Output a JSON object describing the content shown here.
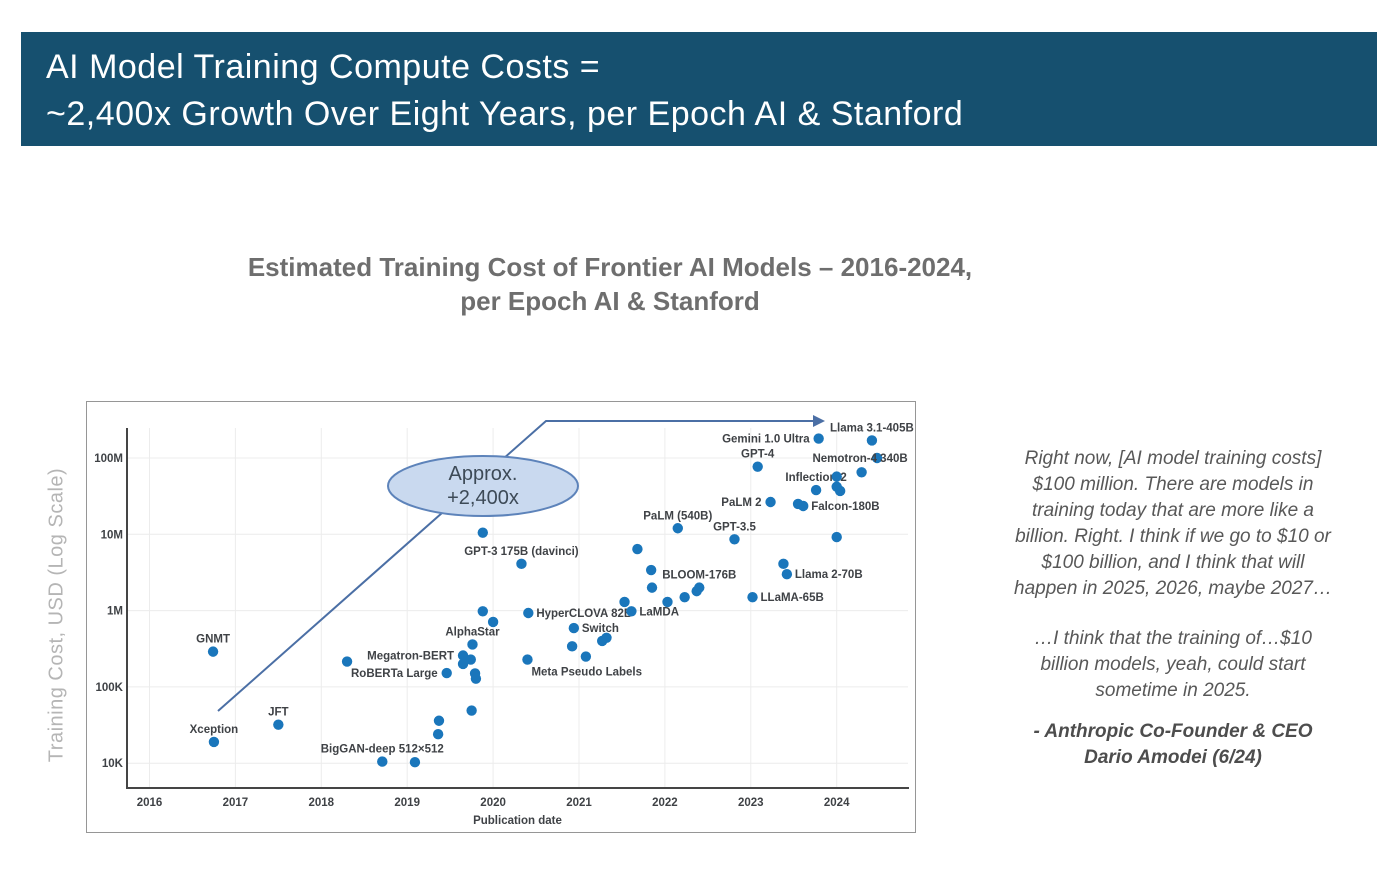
{
  "header": {
    "line1": "AI Model Training Compute Costs =",
    "line2": "~2,400x Growth Over Eight Years, per Epoch AI & Stanford",
    "bg_color": "#16506f",
    "text_color": "#ffffff"
  },
  "quote": {
    "p1_lines": [
      "Right now, [AI model training costs]",
      "$100 million. There are models in",
      "training today that are more like a",
      "billion. Right. I think if we go to $10 or",
      "$100 billion, and I think that will",
      "happen in 2025, 2026, maybe 2027…"
    ],
    "p2_lines": [
      "…I think that the training of…$10",
      "billion models, yeah, could start",
      "sometime in 2025."
    ],
    "attribution_lines": [
      "- Anthropic Co-Founder & CEO",
      "Dario Amodei (6/24)"
    ]
  },
  "chart_data": {
    "type": "scatter",
    "title_line1": "Estimated Training Cost of Frontier AI Models – 2016-2024,",
    "title_line2": "per Epoch AI & Stanford",
    "xlabel": "Publication date",
    "ylabel": "Training Cost, USD (Log Scale)",
    "x_ticks": [
      2016,
      2017,
      2018,
      2019,
      2020,
      2021,
      2022,
      2023,
      2024
    ],
    "y_ticks": [
      {
        "label": "100M",
        "value": 100000000
      },
      {
        "label": "10M",
        "value": 10000000
      },
      {
        "label": "1M",
        "value": 1000000
      },
      {
        "label": "100K",
        "value": 100000
      },
      {
        "label": "10K",
        "value": 10000
      }
    ],
    "x_range": [
      2015.74,
      2024.82
    ],
    "y_range": [
      4300,
      400000000
    ],
    "grid": true,
    "annotation": {
      "line1": "Approx.",
      "line2": "+2,400x"
    },
    "colors": {
      "dot": "#1a76bb",
      "arrow": "#4b6fa5",
      "ellipse_fill": "#c9d9ef",
      "ellipse_stroke": "#5d83ba",
      "grid": "#ececec",
      "spine": "#454545"
    },
    "points": [
      {
        "name": "Xception",
        "year": 2016.75,
        "cost": 19000,
        "side": "above"
      },
      {
        "name": "GNMT",
        "year": 2016.74,
        "cost": 290000,
        "side": "above"
      },
      {
        "name": "JFT",
        "year": 2017.5,
        "cost": 32000,
        "side": "above"
      },
      {
        "name": null,
        "year": 2018.3,
        "cost": 215000
      },
      {
        "name": "BigGAN-deep 512×512",
        "year": 2018.71,
        "cost": 10500,
        "side": "above"
      },
      {
        "name": null,
        "year": 2019.09,
        "cost": 10300
      },
      {
        "name": null,
        "year": 2019.36,
        "cost": 24000
      },
      {
        "name": null,
        "year": 2019.37,
        "cost": 36000
      },
      {
        "name": "RoBERTa Large",
        "year": 2019.46,
        "cost": 152000,
        "side": "left"
      },
      {
        "name": "Megatron-BERT",
        "year": 2019.65,
        "cost": 258000,
        "side": "left"
      },
      {
        "name": null,
        "year": 2019.65,
        "cost": 200000
      },
      {
        "name": null,
        "year": 2019.74,
        "cost": 228000
      },
      {
        "name": "AlphaStar",
        "year": 2019.76,
        "cost": 360000,
        "side": "above"
      },
      {
        "name": null,
        "year": 2019.75,
        "cost": 49000
      },
      {
        "name": null,
        "year": 2019.79,
        "cost": 150000
      },
      {
        "name": null,
        "year": 2019.8,
        "cost": 128000
      },
      {
        "name": null,
        "year": 2019.88,
        "cost": 10500000
      },
      {
        "name": null,
        "year": 2019.88,
        "cost": 980000
      },
      {
        "name": null,
        "year": 2020.0,
        "cost": 710000
      },
      {
        "name": "GPT-3 175B (davinci)",
        "year": 2020.33,
        "cost": 4100000,
        "side": "above"
      },
      {
        "name": "HyperCLOVA 82B",
        "year": 2020.41,
        "cost": 930000,
        "side": "right"
      },
      {
        "name": "Meta Pseudo Labels",
        "year": 2020.4,
        "cost": 228000,
        "side": "below-right"
      },
      {
        "name": null,
        "year": 2020.92,
        "cost": 340000
      },
      {
        "name": "Switch",
        "year": 2020.94,
        "cost": 590000,
        "side": "right"
      },
      {
        "name": null,
        "year": 2021.08,
        "cost": 250000
      },
      {
        "name": null,
        "year": 2021.27,
        "cost": 400000
      },
      {
        "name": null,
        "year": 2021.32,
        "cost": 440000
      },
      {
        "name": null,
        "year": 2021.53,
        "cost": 1300000
      },
      {
        "name": "LaMDA",
        "year": 2021.61,
        "cost": 980000,
        "side": "right"
      },
      {
        "name": null,
        "year": 2021.68,
        "cost": 6400000
      },
      {
        "name": null,
        "year": 2021.84,
        "cost": 3400000
      },
      {
        "name": null,
        "year": 2021.85,
        "cost": 2000000
      },
      {
        "name": null,
        "year": 2022.03,
        "cost": 1300000
      },
      {
        "name": "PaLM (540B)",
        "year": 2022.15,
        "cost": 12000000,
        "side": "above"
      },
      {
        "name": null,
        "year": 2022.23,
        "cost": 1500000
      },
      {
        "name": null,
        "year": 2022.37,
        "cost": 1800000
      },
      {
        "name": "BLOOM-176B",
        "year": 2022.4,
        "cost": 2000000,
        "side": "above"
      },
      {
        "name": "GPT-3.5",
        "year": 2022.81,
        "cost": 8600000,
        "side": "above"
      },
      {
        "name": "LLaMA-65B",
        "year": 2023.02,
        "cost": 1500000,
        "side": "right"
      },
      {
        "name": "GPT-4",
        "year": 2023.08,
        "cost": 77000000,
        "side": "above"
      },
      {
        "name": "PaLM 2",
        "year": 2023.23,
        "cost": 26500000,
        "side": "left"
      },
      {
        "name": null,
        "year": 2023.38,
        "cost": 4100000
      },
      {
        "name": "Llama 2-70B",
        "year": 2023.42,
        "cost": 3000000,
        "side": "right"
      },
      {
        "name": null,
        "year": 2023.55,
        "cost": 25000000
      },
      {
        "name": "Falcon-180B",
        "year": 2023.61,
        "cost": 23500000,
        "side": "right"
      },
      {
        "name": "Inflection-2",
        "year": 2023.76,
        "cost": 38000000,
        "side": "above"
      },
      {
        "name": "Gemini 1.0 Ultra",
        "year": 2023.79,
        "cost": 180000000,
        "side": "left"
      },
      {
        "name": null,
        "year": 2024.0,
        "cost": 57000000
      },
      {
        "name": null,
        "year": 2024.0,
        "cost": 42000000
      },
      {
        "name": null,
        "year": 2024.04,
        "cost": 37000000
      },
      {
        "name": null,
        "year": 2024.0,
        "cost": 9200000
      },
      {
        "name": null,
        "year": 2024.29,
        "cost": 65000000
      },
      {
        "name": "Llama 3.1-405B",
        "year": 2024.41,
        "cost": 170000000,
        "side": "above"
      },
      {
        "name": "Nemotron-4 340B",
        "year": 2024.47,
        "cost": 100000000,
        "side": "on"
      }
    ]
  }
}
